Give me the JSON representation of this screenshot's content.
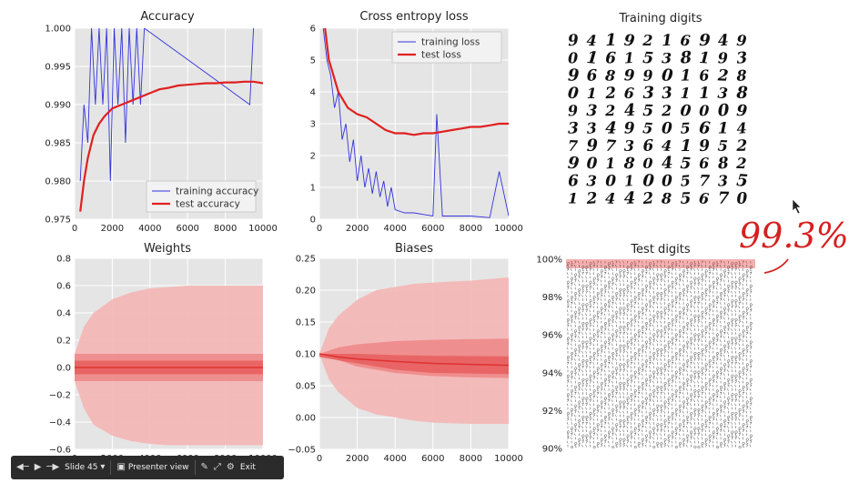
{
  "chart_data": [
    {
      "type": "line",
      "title": "Accuracy",
      "xlim": [
        0,
        10000
      ],
      "ylim": [
        0.975,
        1.0
      ],
      "xticks": [
        "0",
        "2000",
        "4000",
        "6000",
        "8000",
        "10000"
      ],
      "yticks": [
        "0.975",
        "0.980",
        "0.985",
        "0.990",
        "0.995",
        "1.000"
      ],
      "legend_position": "lower-right",
      "grid": true,
      "series": [
        {
          "name": "training accuracy",
          "color": "#3333dd",
          "style": "thin",
          "x": [
            300,
            500,
            700,
            900,
            1100,
            1300,
            1500,
            1700,
            1900,
            2100,
            2300,
            2500,
            2700,
            2900,
            3100,
            3300,
            3500,
            3700,
            9300,
            9500
          ],
          "y": [
            0.98,
            0.99,
            0.985,
            1.0,
            0.99,
            1.0,
            0.99,
            1.0,
            0.98,
            1.0,
            0.99,
            1.0,
            0.985,
            1.0,
            0.99,
            1.0,
            0.99,
            1.0,
            0.99,
            1.0
          ]
        },
        {
          "name": "test accuracy",
          "color": "#e02020",
          "style": "thick",
          "x": [
            300,
            500,
            700,
            1000,
            1300,
            1600,
            2000,
            2500,
            3000,
            3500,
            4000,
            4500,
            5000,
            5500,
            6000,
            6500,
            7000,
            7500,
            8000,
            8500,
            9000,
            9500,
            10000
          ],
          "y": [
            0.976,
            0.98,
            0.983,
            0.986,
            0.9875,
            0.9885,
            0.9895,
            0.99,
            0.9905,
            0.991,
            0.9915,
            0.992,
            0.9922,
            0.9925,
            0.9926,
            0.9927,
            0.9928,
            0.9928,
            0.9929,
            0.9929,
            0.993,
            0.993,
            0.9928
          ]
        }
      ]
    },
    {
      "type": "line",
      "title": "Cross entropy loss",
      "xlim": [
        0,
        10000
      ],
      "ylim": [
        0,
        6
      ],
      "xticks": [
        "0",
        "2000",
        "4000",
        "6000",
        "8000",
        "10000"
      ],
      "yticks": [
        "0",
        "1",
        "2",
        "3",
        "4",
        "5",
        "6"
      ],
      "legend_position": "top-right",
      "grid": true,
      "series": [
        {
          "name": "training loss",
          "color": "#3333dd",
          "style": "thin",
          "x": [
            200,
            400,
            600,
            800,
            1000,
            1200,
            1400,
            1600,
            1800,
            2000,
            2200,
            2400,
            2600,
            2800,
            3000,
            3200,
            3400,
            3600,
            3800,
            4000,
            4500,
            5000,
            5500,
            6000,
            6200,
            6500,
            7000,
            8000,
            9000,
            9500,
            10000
          ],
          "y": [
            6,
            5,
            4.5,
            3.5,
            4,
            2.5,
            3,
            1.8,
            2.5,
            1.2,
            2,
            1.0,
            1.6,
            0.8,
            1.5,
            0.7,
            1.2,
            0.4,
            1.0,
            0.3,
            0.2,
            0.2,
            0.15,
            0.1,
            3.3,
            0.1,
            0.1,
            0.1,
            0.05,
            1.5,
            0.1
          ]
        },
        {
          "name": "test loss",
          "color": "#e02020",
          "style": "thick",
          "x": [
            300,
            500,
            700,
            1000,
            1500,
            2000,
            2500,
            3000,
            3500,
            4000,
            4500,
            5000,
            5500,
            6000,
            6500,
            7000,
            7500,
            8000,
            8500,
            9000,
            9500,
            10000
          ],
          "y": [
            6.0,
            5.0,
            4.6,
            4.0,
            3.5,
            3.3,
            3.2,
            3.0,
            2.8,
            2.7,
            2.7,
            2.65,
            2.7,
            2.7,
            2.75,
            2.8,
            2.85,
            2.9,
            2.9,
            2.95,
            3.0,
            3.0
          ]
        }
      ]
    },
    {
      "type": "area",
      "title": "Weights",
      "xlim": [
        0,
        10000
      ],
      "ylim": [
        -0.6,
        0.8
      ],
      "xticks": [
        "0",
        "2000",
        "4000",
        "6000",
        "8000",
        "10000"
      ],
      "yticks": [
        "−0.6",
        "−0.4",
        "−0.2",
        "0.0",
        "0.2",
        "0.4",
        "0.6",
        "0.8"
      ],
      "grid": true,
      "bands": [
        {
          "name": "max-min",
          "color": "#f4b5b5",
          "x": [
            0,
            500,
            1000,
            2000,
            3000,
            4000,
            5000,
            6000,
            8000,
            10000
          ],
          "upper": [
            0.1,
            0.3,
            0.4,
            0.5,
            0.55,
            0.58,
            0.59,
            0.6,
            0.6,
            0.6
          ],
          "lower": [
            -0.1,
            -0.3,
            -0.42,
            -0.5,
            -0.54,
            -0.56,
            -0.57,
            -0.57,
            -0.57,
            -0.57
          ]
        },
        {
          "name": "std",
          "color": "#ee8a8a",
          "x": [
            0,
            10000
          ],
          "upper": [
            0.1,
            0.1
          ],
          "lower": [
            -0.1,
            -0.1
          ]
        },
        {
          "name": "mid",
          "color": "#e86060",
          "x": [
            0,
            10000
          ],
          "upper": [
            0.05,
            0.05
          ],
          "lower": [
            -0.05,
            -0.05
          ]
        }
      ],
      "mean": {
        "x": [
          0,
          10000
        ],
        "y": [
          0.0,
          0.0
        ]
      }
    },
    {
      "type": "area",
      "title": "Biases",
      "xlim": [
        0,
        10000
      ],
      "ylim": [
        -0.05,
        0.25
      ],
      "xticks": [
        "0",
        "2000",
        "4000",
        "6000",
        "8000",
        "10000"
      ],
      "yticks": [
        "−0.05",
        "0.00",
        "0.05",
        "0.10",
        "0.15",
        "0.20",
        "0.25"
      ],
      "grid": true,
      "bands": [
        {
          "name": "max-min",
          "color": "#f4b5b5",
          "x": [
            0,
            500,
            1000,
            2000,
            3000,
            4000,
            5000,
            6000,
            8000,
            10000
          ],
          "upper": [
            0.1,
            0.14,
            0.16,
            0.185,
            0.2,
            0.205,
            0.21,
            0.212,
            0.215,
            0.22
          ],
          "lower": [
            0.1,
            0.06,
            0.04,
            0.015,
            0.005,
            0.0,
            -0.005,
            -0.008,
            -0.01,
            -0.01
          ]
        },
        {
          "name": "std",
          "color": "#ee8a8a",
          "x": [
            0,
            1000,
            2000,
            4000,
            6000,
            8000,
            10000
          ],
          "upper": [
            0.1,
            0.11,
            0.115,
            0.12,
            0.122,
            0.123,
            0.124
          ],
          "lower": [
            0.1,
            0.09,
            0.08,
            0.07,
            0.065,
            0.063,
            0.062
          ]
        },
        {
          "name": "mid",
          "color": "#e86060",
          "x": [
            0,
            2000,
            4000,
            6000,
            10000
          ],
          "upper": [
            0.1,
            0.1,
            0.098,
            0.097,
            0.096
          ],
          "lower": [
            0.095,
            0.085,
            0.075,
            0.07,
            0.068
          ]
        }
      ],
      "mean": {
        "x": [
          0,
          1000,
          2000,
          4000,
          6000,
          10000
        ],
        "y": [
          0.1,
          0.095,
          0.092,
          0.088,
          0.085,
          0.082
        ]
      }
    }
  ],
  "training_digits": {
    "title": "Training digits",
    "rows": [
      "9419216949",
      "0161538193",
      "9689901628",
      "0126331138",
      "9324520009",
      "3349505614",
      "7973641952",
      "9018045682",
      "6301005735",
      "1244285670"
    ]
  },
  "test_digits": {
    "title": "Test digits",
    "yticks": [
      "100%",
      "98%",
      "96%",
      "94%",
      "92%",
      "90%"
    ]
  },
  "annotation": {
    "text": "99.3%",
    "color": "#d62020"
  },
  "toolbar": {
    "slide_label": "Slide 45",
    "presenter_label": "Presenter view",
    "exit_label": "Exit"
  }
}
